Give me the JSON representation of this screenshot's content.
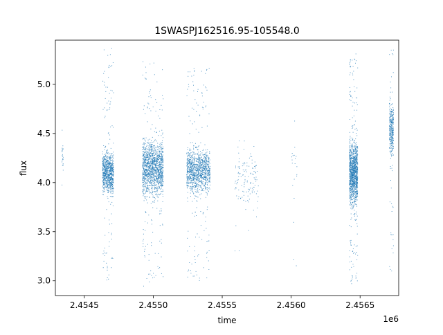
{
  "chart_data": {
    "type": "scatter",
    "title": "1SWASPJ162516.95-105548.0",
    "xlabel": "time",
    "ylabel": "flux",
    "x_offset_label": "1e6",
    "xlim": [
      2454290,
      2456780
    ],
    "ylim": [
      2.85,
      5.45
    ],
    "x_ticks": [
      2454500,
      2455000,
      2455500,
      2456000,
      2456500
    ],
    "x_tick_labels": [
      "2.4545",
      "2.4550",
      "2.4555",
      "2.4560",
      "2.4565"
    ],
    "y_ticks": [
      3.0,
      3.5,
      4.0,
      4.5,
      5.0
    ],
    "y_tick_labels": [
      "3.0",
      "3.5",
      "4.0",
      "4.5",
      "5.0"
    ],
    "grid": false,
    "legend": false,
    "series": [
      {
        "marker_color": "#1f77b4",
        "clusters": [
          {
            "x": [
              2454335,
              2454345
            ],
            "y_core": [
              4.05,
              4.45
            ],
            "y_range": [
              3.9,
              4.8
            ],
            "n": 25
          },
          {
            "x": [
              2454630,
              2454710
            ],
            "y_core": [
              3.85,
              4.35
            ],
            "y_range": [
              3.0,
              5.38
            ],
            "n": 900
          },
          {
            "x": [
              2454920,
              2455070
            ],
            "y_core": [
              3.8,
              4.5
            ],
            "y_range": [
              2.95,
              5.25
            ],
            "n": 1500
          },
          {
            "x": [
              2455240,
              2455410
            ],
            "y_core": [
              3.85,
              4.4
            ],
            "y_range": [
              3.0,
              5.18
            ],
            "n": 1200
          },
          {
            "x": [
              2455590,
              2455760
            ],
            "y_core": [
              3.7,
              4.4
            ],
            "y_range": [
              3.3,
              5.1
            ],
            "n": 130
          },
          {
            "x": [
              2456000,
              2456040
            ],
            "y_core": [
              3.9,
              4.5
            ],
            "y_range": [
              3.15,
              4.7
            ],
            "n": 20
          },
          {
            "x": [
              2456420,
              2456480
            ],
            "y_core": [
              3.7,
              4.5
            ],
            "y_range": [
              2.97,
              5.33
            ],
            "n": 1300
          },
          {
            "x": [
              2456710,
              2456740
            ],
            "y_core": [
              4.2,
              4.9
            ],
            "y_range": [
              3.05,
              5.36
            ],
            "n": 350
          }
        ]
      }
    ]
  }
}
